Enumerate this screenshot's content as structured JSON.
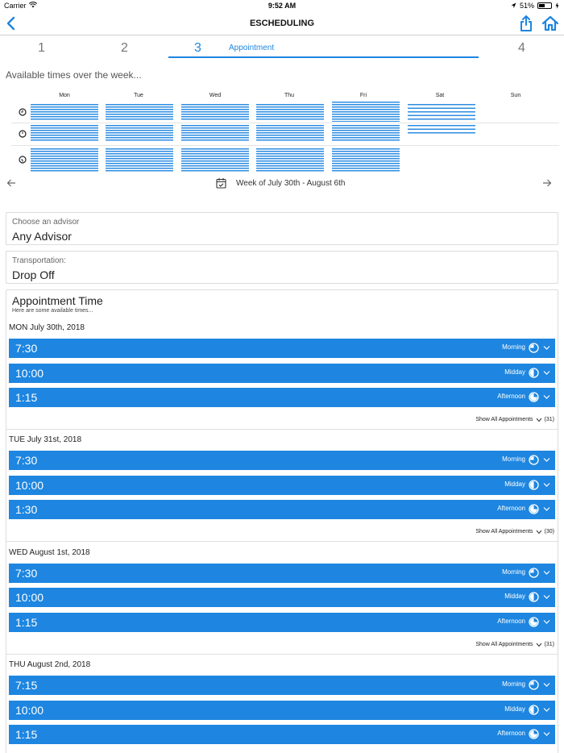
{
  "status_bar": {
    "carrier": "Carrier",
    "time": "9:52 AM",
    "battery": "51%",
    "battery_level": 0.51
  },
  "nav": {
    "title": "ESCHEDULING"
  },
  "steps": {
    "labels": [
      "1",
      "2",
      "3",
      "4"
    ],
    "active_label": "Appointment"
  },
  "availability": {
    "title": "Available times over the week...",
    "days": [
      "Mon",
      "Tue",
      "Wed",
      "Thu",
      "Fri",
      "Sat",
      "Sun"
    ],
    "week_label": "Week of July 30th - August 6th"
  },
  "advisor": {
    "label": "Choose an advisor",
    "value": "Any Advisor"
  },
  "transportation": {
    "label": "Transportation:",
    "value": "Drop Off"
  },
  "appointment": {
    "title": "Appointment Time",
    "subtitle": "Here are some available times...",
    "show_all_label": "Show All Appointments",
    "days": [
      {
        "heading": "MON July 30th, 2018",
        "count": "(31)",
        "slots": [
          {
            "time": "7:30",
            "period": "Morning"
          },
          {
            "time": "10:00",
            "period": "Midday"
          },
          {
            "time": "1:15",
            "period": "Afternoon"
          }
        ]
      },
      {
        "heading": "TUE July 31st, 2018",
        "count": "(30)",
        "slots": [
          {
            "time": "7:30",
            "period": "Morning"
          },
          {
            "time": "10:00",
            "period": "Midday"
          },
          {
            "time": "1:30",
            "period": "Afternoon"
          }
        ]
      },
      {
        "heading": "WED August 1st, 2018",
        "count": "(31)",
        "slots": [
          {
            "time": "7:30",
            "period": "Morning"
          },
          {
            "time": "10:00",
            "period": "Midday"
          },
          {
            "time": "1:15",
            "period": "Afternoon"
          }
        ]
      },
      {
        "heading": "THU August 2nd, 2018",
        "slots": [
          {
            "time": "7:15",
            "period": "Morning"
          },
          {
            "time": "10:00",
            "period": "Midday"
          },
          {
            "time": "1:15",
            "period": "Afternoon"
          }
        ]
      }
    ]
  },
  "colors": {
    "accent": "#1e86e0"
  }
}
